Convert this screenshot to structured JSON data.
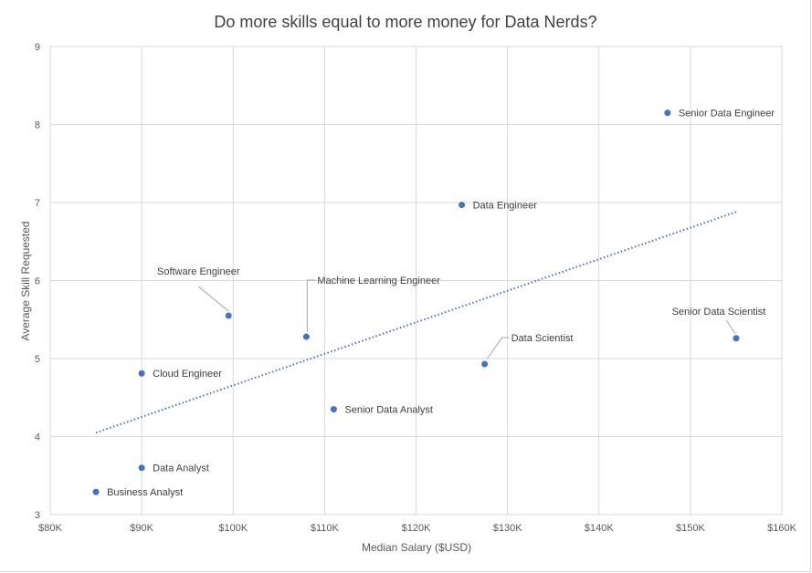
{
  "chart_data": {
    "type": "scatter",
    "title": "Do more skills equal to more money for Data Nerds?",
    "xlabel": "Median Salary ($USD)",
    "ylabel": "Average Skill Requested",
    "xlim": [
      80000,
      160000
    ],
    "ylim": [
      3,
      9
    ],
    "x_ticks": [
      80000,
      90000,
      100000,
      110000,
      120000,
      130000,
      140000,
      150000,
      160000
    ],
    "x_tick_labels": [
      "$80K",
      "$90K",
      "$100K",
      "$110K",
      "$120K",
      "$130K",
      "$140K",
      "$150K",
      "$160K"
    ],
    "y_ticks": [
      3,
      4,
      5,
      6,
      7,
      8,
      9
    ],
    "y_tick_labels": [
      "3",
      "4",
      "5",
      "6",
      "7",
      "8",
      "9"
    ],
    "grid": true,
    "marker_color": "#4472c4",
    "trendline": {
      "type": "linear",
      "style": "dotted",
      "color": "#4472c4",
      "x": [
        85000,
        155000
      ],
      "y": [
        4.05,
        6.88
      ]
    },
    "points": [
      {
        "label": "Senior Data Engineer",
        "x": 147500,
        "y": 8.15
      },
      {
        "label": "Data Engineer",
        "x": 125000,
        "y": 6.97
      },
      {
        "label": "Software Engineer",
        "x": 99500,
        "y": 5.55
      },
      {
        "label": "Machine Learning Engineer",
        "x": 108000,
        "y": 5.28
      },
      {
        "label": "Senior Data Scientist",
        "x": 155000,
        "y": 5.26
      },
      {
        "label": "Data Scientist",
        "x": 127500,
        "y": 4.93
      },
      {
        "label": "Cloud Engineer",
        "x": 90000,
        "y": 4.81
      },
      {
        "label": "Senior Data Analyst",
        "x": 111000,
        "y": 4.35
      },
      {
        "label": "Data Analyst",
        "x": 90000,
        "y": 3.6
      },
      {
        "label": "Business Analyst",
        "x": 85000,
        "y": 3.29
      }
    ]
  }
}
